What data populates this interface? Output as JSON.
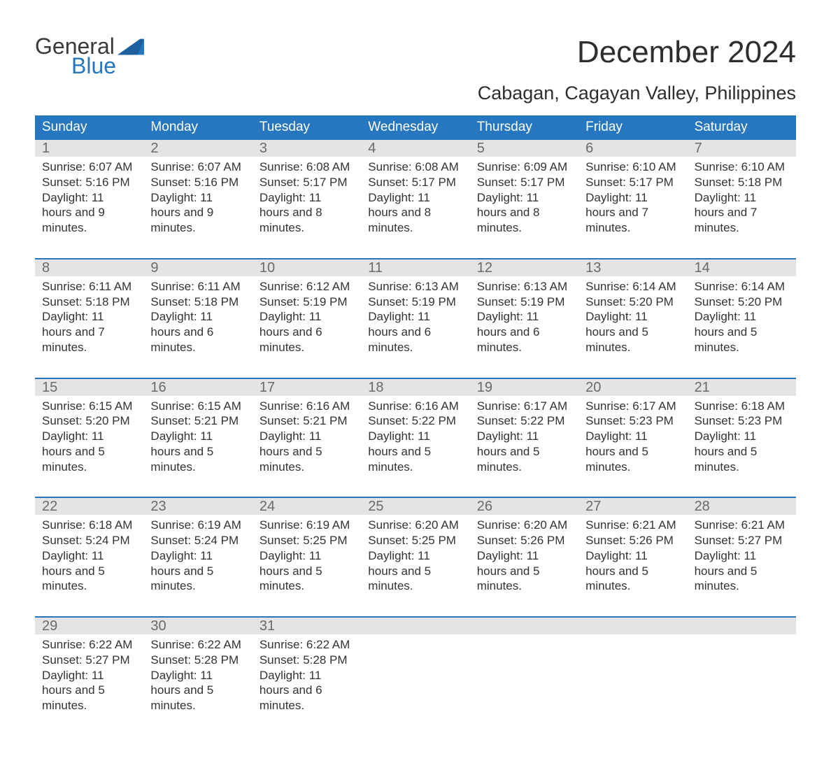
{
  "colors": {
    "brand_blue": "#2676c0",
    "header_gray": "#e4e4e4",
    "text_dark": "#2a2a2a",
    "text_muted": "#6a6a6a",
    "background": "#ffffff"
  },
  "typography": {
    "font_family": "Arial",
    "month_title_size_pt": 33,
    "location_size_pt": 20,
    "dow_size_pt": 14,
    "daynum_size_pt": 15,
    "details_size_pt": 13
  },
  "logo": {
    "line1": "General",
    "line2": "Blue"
  },
  "title": "December 2024",
  "location": "Cabagan, Cagayan Valley, Philippines",
  "days_of_week": [
    "Sunday",
    "Monday",
    "Tuesday",
    "Wednesday",
    "Thursday",
    "Friday",
    "Saturday"
  ],
  "weeks": [
    [
      {
        "num": "1",
        "sunrise": "6:07 AM",
        "sunset": "5:16 PM",
        "daylight": "11 hours and 9 minutes."
      },
      {
        "num": "2",
        "sunrise": "6:07 AM",
        "sunset": "5:16 PM",
        "daylight": "11 hours and 9 minutes."
      },
      {
        "num": "3",
        "sunrise": "6:08 AM",
        "sunset": "5:17 PM",
        "daylight": "11 hours and 8 minutes."
      },
      {
        "num": "4",
        "sunrise": "6:08 AM",
        "sunset": "5:17 PM",
        "daylight": "11 hours and 8 minutes."
      },
      {
        "num": "5",
        "sunrise": "6:09 AM",
        "sunset": "5:17 PM",
        "daylight": "11 hours and 8 minutes."
      },
      {
        "num": "6",
        "sunrise": "6:10 AM",
        "sunset": "5:17 PM",
        "daylight": "11 hours and 7 minutes."
      },
      {
        "num": "7",
        "sunrise": "6:10 AM",
        "sunset": "5:18 PM",
        "daylight": "11 hours and 7 minutes."
      }
    ],
    [
      {
        "num": "8",
        "sunrise": "6:11 AM",
        "sunset": "5:18 PM",
        "daylight": "11 hours and 7 minutes."
      },
      {
        "num": "9",
        "sunrise": "6:11 AM",
        "sunset": "5:18 PM",
        "daylight": "11 hours and 6 minutes."
      },
      {
        "num": "10",
        "sunrise": "6:12 AM",
        "sunset": "5:19 PM",
        "daylight": "11 hours and 6 minutes."
      },
      {
        "num": "11",
        "sunrise": "6:13 AM",
        "sunset": "5:19 PM",
        "daylight": "11 hours and 6 minutes."
      },
      {
        "num": "12",
        "sunrise": "6:13 AM",
        "sunset": "5:19 PM",
        "daylight": "11 hours and 6 minutes."
      },
      {
        "num": "13",
        "sunrise": "6:14 AM",
        "sunset": "5:20 PM",
        "daylight": "11 hours and 5 minutes."
      },
      {
        "num": "14",
        "sunrise": "6:14 AM",
        "sunset": "5:20 PM",
        "daylight": "11 hours and 5 minutes."
      }
    ],
    [
      {
        "num": "15",
        "sunrise": "6:15 AM",
        "sunset": "5:20 PM",
        "daylight": "11 hours and 5 minutes."
      },
      {
        "num": "16",
        "sunrise": "6:15 AM",
        "sunset": "5:21 PM",
        "daylight": "11 hours and 5 minutes."
      },
      {
        "num": "17",
        "sunrise": "6:16 AM",
        "sunset": "5:21 PM",
        "daylight": "11 hours and 5 minutes."
      },
      {
        "num": "18",
        "sunrise": "6:16 AM",
        "sunset": "5:22 PM",
        "daylight": "11 hours and 5 minutes."
      },
      {
        "num": "19",
        "sunrise": "6:17 AM",
        "sunset": "5:22 PM",
        "daylight": "11 hours and 5 minutes."
      },
      {
        "num": "20",
        "sunrise": "6:17 AM",
        "sunset": "5:23 PM",
        "daylight": "11 hours and 5 minutes."
      },
      {
        "num": "21",
        "sunrise": "6:18 AM",
        "sunset": "5:23 PM",
        "daylight": "11 hours and 5 minutes."
      }
    ],
    [
      {
        "num": "22",
        "sunrise": "6:18 AM",
        "sunset": "5:24 PM",
        "daylight": "11 hours and 5 minutes."
      },
      {
        "num": "23",
        "sunrise": "6:19 AM",
        "sunset": "5:24 PM",
        "daylight": "11 hours and 5 minutes."
      },
      {
        "num": "24",
        "sunrise": "6:19 AM",
        "sunset": "5:25 PM",
        "daylight": "11 hours and 5 minutes."
      },
      {
        "num": "25",
        "sunrise": "6:20 AM",
        "sunset": "5:25 PM",
        "daylight": "11 hours and 5 minutes."
      },
      {
        "num": "26",
        "sunrise": "6:20 AM",
        "sunset": "5:26 PM",
        "daylight": "11 hours and 5 minutes."
      },
      {
        "num": "27",
        "sunrise": "6:21 AM",
        "sunset": "5:26 PM",
        "daylight": "11 hours and 5 minutes."
      },
      {
        "num": "28",
        "sunrise": "6:21 AM",
        "sunset": "5:27 PM",
        "daylight": "11 hours and 5 minutes."
      }
    ],
    [
      {
        "num": "29",
        "sunrise": "6:22 AM",
        "sunset": "5:27 PM",
        "daylight": "11 hours and 5 minutes."
      },
      {
        "num": "30",
        "sunrise": "6:22 AM",
        "sunset": "5:28 PM",
        "daylight": "11 hours and 5 minutes."
      },
      {
        "num": "31",
        "sunrise": "6:22 AM",
        "sunset": "5:28 PM",
        "daylight": "11 hours and 6 minutes."
      },
      null,
      null,
      null,
      null
    ]
  ],
  "labels": {
    "sunrise_prefix": "Sunrise: ",
    "sunset_prefix": "Sunset: ",
    "daylight_prefix": "Daylight: "
  }
}
